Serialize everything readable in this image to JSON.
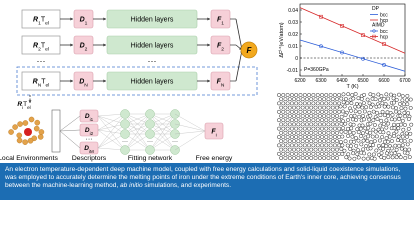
{
  "diagram": {
    "rows": [
      {
        "r": "R",
        "r_sub": "1",
        "t": "T",
        "t_sub": "el",
        "d": "D",
        "d_sub": "1",
        "hidden": "Hidden layers",
        "f": "F",
        "f_sub": "1"
      },
      {
        "r": "R",
        "r_sub": "2",
        "t": "T",
        "t_sub": "el",
        "d": "D",
        "d_sub": "2",
        "hidden": "Hidden layers",
        "f": "F",
        "f_sub": "2"
      },
      {
        "r": "R",
        "r_sub": "N",
        "t": "T",
        "t_sub": "el",
        "d": "D",
        "d_sub": "N",
        "hidden": "Hidden layers",
        "f": "F",
        "f_sub": "N"
      }
    ],
    "ellipsis": "···",
    "total": "F",
    "detail": {
      "r": "R",
      "r_sub": "i",
      "t": "T",
      "t_sub": "el",
      "descriptors": [
        {
          "d": "D",
          "sub": "i1"
        },
        {
          "d": "D",
          "sub": "i2"
        },
        {
          "d": "D",
          "sub": "iM"
        }
      ],
      "f": "F",
      "f_sub": "i",
      "labels": [
        "Local Environments",
        "Descriptors",
        "Fitting network",
        "Free energy"
      ]
    }
  },
  "chart_data": {
    "type": "line",
    "y_label": {
      "main": "ΔF",
      "sup": "l-s",
      "unit": "(eV/atom)"
    },
    "x_label": "T (K)",
    "annotation": "P=360GPa",
    "xlim": [
      6200,
      6700
    ],
    "xticks": [
      6200,
      6300,
      6400,
      6500,
      6600,
      6700
    ],
    "ylim": [
      -0.015,
      0.045
    ],
    "yticks": [
      -0.01,
      0,
      0.01,
      0.02,
      0.03,
      0.04
    ],
    "reference_line": 0,
    "legend_titles": [
      "DP",
      "AIMD"
    ],
    "series": [
      {
        "name": "bcc",
        "color": "#2a5bd7",
        "x": [
          6200,
          6700
        ],
        "values": [
          0.015,
          -0.011
        ]
      },
      {
        "name": "hcp",
        "color": "#d62728",
        "x": [
          6200,
          6700
        ],
        "values": [
          0.042,
          0.004
        ]
      },
      {
        "name": "bcc",
        "color": "#2a5bd7",
        "x": [
          6300,
          6400,
          6500,
          6600
        ],
        "values": [
          0.0098,
          0.0046,
          -0.0006,
          -0.0058
        ]
      },
      {
        "name": "hcp",
        "color": "#d62728",
        "x": [
          6300,
          6400,
          6500,
          6600
        ],
        "values": [
          0.0344,
          0.0268,
          0.019,
          0.0116
        ]
      }
    ]
  },
  "caption": {
    "before": "An electron temperature-dependent deep machine model, coupled with free energy calculations and solid-liquid coexistence simulations, was employed to accurately determine the melting points of iron under the extreme conditions of Earth's inner core, achieving consensus between the machine-learning method,",
    "italic": "ab initio",
    "after": "simulations, and experiments."
  }
}
